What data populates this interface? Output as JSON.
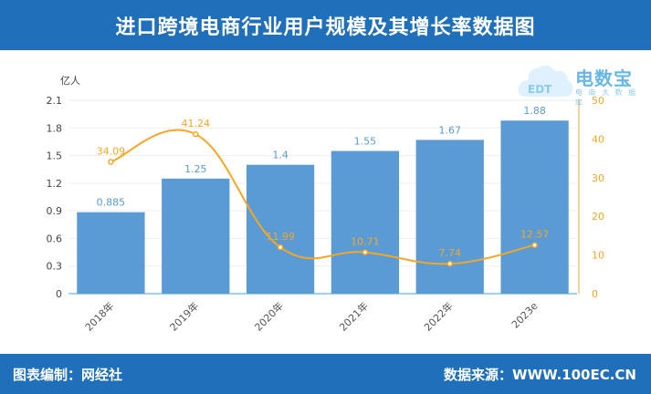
{
  "header": {
    "title": "进口跨境电商行业用户规模及其增长率数据图"
  },
  "footer": {
    "editor": "图表编制：网经社",
    "source": "数据来源：WWW.100EC.CN"
  },
  "logo": {
    "text": "电数宝",
    "subtext": "电 商 大 数 据 库",
    "badge": "EDT"
  },
  "colors": {
    "header_bg": "#1f6fba",
    "bar": "#5b9bd5",
    "line": "#f5a623",
    "bar_label": "#5b9bd5",
    "line_label": "#f5a623"
  },
  "chart_data": {
    "type": "bar",
    "categories": [
      "2018年",
      "2019年",
      "2020年",
      "2021年",
      "2022年",
      "2023e"
    ],
    "series": [
      {
        "values": [
          0.885,
          1.25,
          1.4,
          1.55,
          1.67,
          1.88
        ],
        "axis": "left",
        "kind": "bar"
      },
      {
        "values": [
          34.09,
          41.24,
          11.99,
          10.71,
          7.74,
          12.57
        ],
        "axis": "right",
        "kind": "line"
      }
    ],
    "bar_labels": [
      "0.885",
      "1.25",
      "1.4",
      "1.55",
      "1.67",
      "1.88"
    ],
    "line_labels": [
      "34.09",
      "41.24",
      "11.99",
      "10.71",
      "7.74",
      "12.57"
    ],
    "ylabel": "亿人",
    "ylim": [
      0,
      2.1
    ],
    "yticks": [
      "0",
      "0.3",
      "0.6",
      "0.9",
      "1.2",
      "1.5",
      "1.8",
      "2.1"
    ],
    "y2lim": [
      0,
      50
    ],
    "y2ticks": [
      "0",
      "10",
      "20",
      "30",
      "40",
      "50"
    ],
    "grid": true,
    "legend": "none"
  }
}
